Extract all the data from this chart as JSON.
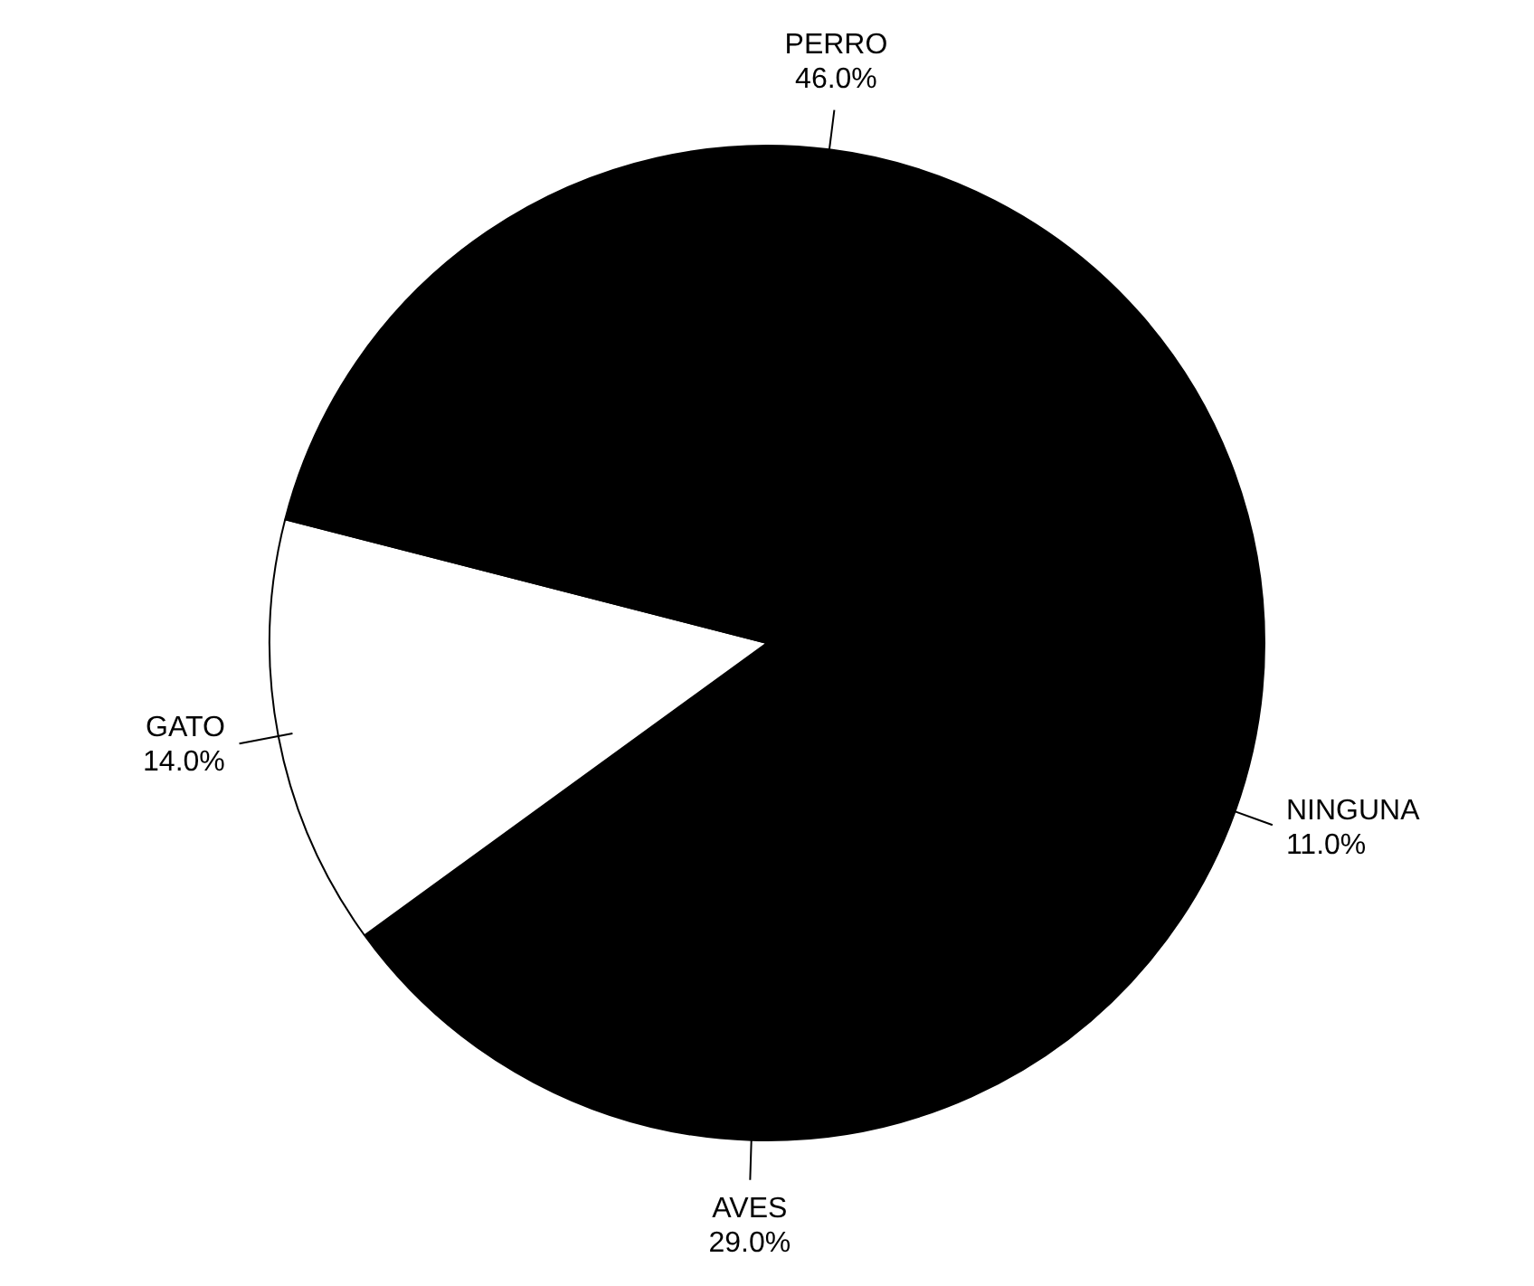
{
  "chart_data": {
    "type": "pie",
    "categories": [
      "NINGUNA",
      "AVES",
      "GATO",
      "PERRO"
    ],
    "values": [
      11,
      29,
      14,
      46
    ],
    "colors": [
      "#000000",
      "#000000",
      "#ffffff",
      "#000000"
    ],
    "value_labels": [
      "11.0%",
      "29.0%",
      "14.0%",
      "46.0%"
    ],
    "legend": false
  }
}
